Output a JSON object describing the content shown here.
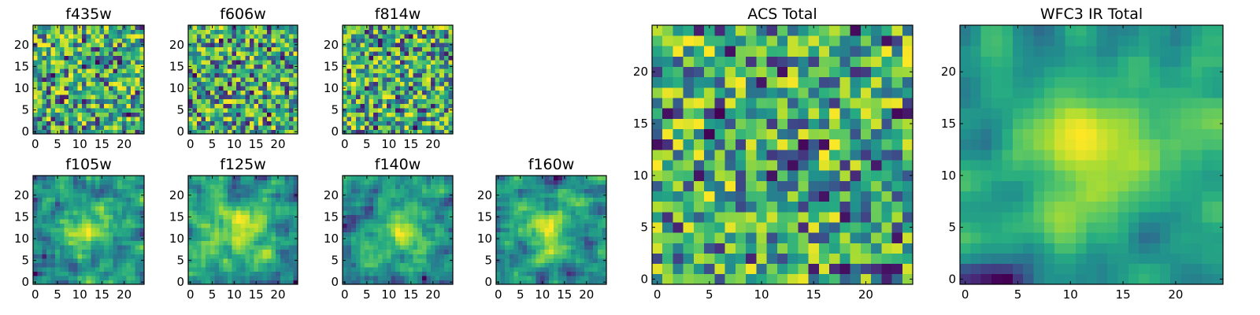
{
  "chart_data": [
    {
      "type": "heatmap",
      "title": "f435w",
      "xticks": [
        "0",
        "5",
        "10",
        "15",
        "20"
      ],
      "yticks": [
        "0",
        "5",
        "10",
        "15",
        "20"
      ],
      "xlim": [
        -0.5,
        24.5
      ],
      "ylim": [
        -0.5,
        24.5
      ],
      "grid_size": 25,
      "colormap": "viridis",
      "seed": 11,
      "smooth": 0,
      "hotspot": null
    },
    {
      "type": "heatmap",
      "title": "f606w",
      "xticks": [
        "0",
        "5",
        "10",
        "15",
        "20"
      ],
      "yticks": [
        "0",
        "5",
        "10",
        "15",
        "20"
      ],
      "xlim": [
        -0.5,
        24.5
      ],
      "ylim": [
        -0.5,
        24.5
      ],
      "grid_size": 25,
      "colormap": "viridis",
      "seed": 23,
      "smooth": 0,
      "hotspot": null
    },
    {
      "type": "heatmap",
      "title": "f814w",
      "xticks": [
        "0",
        "5",
        "10",
        "15",
        "20"
      ],
      "yticks": [
        "0",
        "5",
        "10",
        "15",
        "20"
      ],
      "xlim": [
        -0.5,
        24.5
      ],
      "ylim": [
        -0.5,
        24.5
      ],
      "grid_size": 25,
      "colormap": "viridis",
      "seed": 37,
      "smooth": 0,
      "hotspot": null
    },
    {
      "type": "heatmap",
      "title": "f105w",
      "xticks": [
        "0",
        "5",
        "10",
        "15",
        "20"
      ],
      "yticks": [
        "0",
        "5",
        "10",
        "15",
        "20"
      ],
      "xlim": [
        -0.5,
        24.5
      ],
      "ylim": [
        -0.5,
        24.5
      ],
      "grid_size": 25,
      "colormap": "viridis",
      "seed": 41,
      "smooth": 1,
      "hotspot": [
        12,
        12
      ]
    },
    {
      "type": "heatmap",
      "title": "f125w",
      "xticks": [
        "0",
        "5",
        "10",
        "15",
        "20"
      ],
      "yticks": [
        "0",
        "5",
        "10",
        "15",
        "20"
      ],
      "xlim": [
        -0.5,
        24.5
      ],
      "ylim": [
        -0.5,
        24.5
      ],
      "grid_size": 25,
      "colormap": "viridis",
      "seed": 53,
      "smooth": 1,
      "hotspot": [
        12,
        12
      ]
    },
    {
      "type": "heatmap",
      "title": "f140w",
      "xticks": [
        "0",
        "5",
        "10",
        "15",
        "20"
      ],
      "yticks": [
        "0",
        "5",
        "10",
        "15",
        "20"
      ],
      "xlim": [
        -0.5,
        24.5
      ],
      "ylim": [
        -0.5,
        24.5
      ],
      "grid_size": 25,
      "colormap": "viridis",
      "seed": 67,
      "smooth": 1,
      "hotspot": [
        13,
        12
      ]
    },
    {
      "type": "heatmap",
      "title": "f160w",
      "xticks": [
        "0",
        "5",
        "10",
        "15",
        "20"
      ],
      "yticks": [
        "0",
        "5",
        "10",
        "15",
        "20"
      ],
      "xlim": [
        -0.5,
        24.5
      ],
      "ylim": [
        -0.5,
        24.5
      ],
      "grid_size": 25,
      "colormap": "viridis",
      "seed": 71,
      "smooth": 1,
      "hotspot": [
        12,
        12
      ]
    },
    {
      "type": "heatmap",
      "title": "ACS Total",
      "xticks": [
        "0",
        "5",
        "10",
        "15",
        "20"
      ],
      "yticks": [
        "0",
        "5",
        "10",
        "15",
        "20"
      ],
      "xlim": [
        -0.5,
        24.5
      ],
      "ylim": [
        -0.5,
        24.5
      ],
      "grid_size": 25,
      "colormap": "viridis",
      "seed": 83,
      "smooth": 0,
      "hotspot": null
    },
    {
      "type": "heatmap",
      "title": "WFC3 IR Total",
      "xticks": [
        "0",
        "5",
        "10",
        "15",
        "20"
      ],
      "yticks": [
        "0",
        "5",
        "10",
        "15",
        "20"
      ],
      "xlim": [
        -0.5,
        24.5
      ],
      "ylim": [
        -0.5,
        24.5
      ],
      "grid_size": 25,
      "colormap": "viridis",
      "seed": 97,
      "smooth": 2,
      "hotspot": [
        12,
        13
      ]
    }
  ]
}
